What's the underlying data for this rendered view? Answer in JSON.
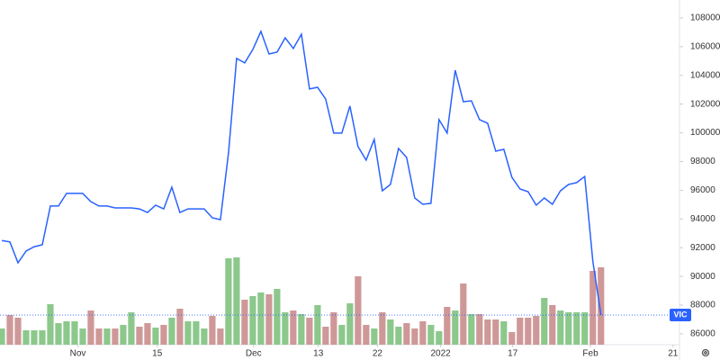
{
  "chart_data": {
    "type": "line",
    "x": [
      0,
      1,
      2,
      3,
      4,
      5,
      6,
      7,
      8,
      9,
      10,
      11,
      12,
      13,
      14,
      15,
      16,
      17,
      18,
      19,
      20,
      21,
      22,
      23,
      24,
      25,
      26,
      27,
      28,
      29,
      30,
      31,
      32,
      33,
      34,
      35,
      36,
      37,
      38,
      39,
      40,
      41,
      42,
      43,
      44,
      45,
      46,
      47,
      48,
      49,
      50,
      51,
      52,
      53,
      54,
      55,
      56,
      57,
      58,
      59,
      60,
      61,
      62,
      63,
      64,
      65,
      66,
      67,
      68,
      69,
      70,
      71,
      72,
      73,
      74
    ],
    "series": [
      {
        "name": "VIC",
        "color": "#2962ff",
        "values": [
          92500,
          92400,
          90950,
          91760,
          92070,
          92200,
          94900,
          94900,
          95780,
          95780,
          95780,
          95210,
          94900,
          94900,
          94770,
          94770,
          94770,
          94700,
          94450,
          94960,
          94700,
          96210,
          94450,
          94700,
          94700,
          94700,
          94080,
          93950,
          98600,
          105180,
          104870,
          105800,
          107060,
          105490,
          105620,
          106620,
          105870,
          106870,
          103050,
          103170,
          102360,
          99980,
          99980,
          101860,
          99040,
          98100,
          99540,
          95960,
          96400,
          98910,
          98280,
          95460,
          95020,
          95090,
          100920,
          99980,
          104360,
          102170,
          102230,
          100920,
          100670,
          98720,
          98850,
          96900,
          96090,
          95900,
          94960,
          95460,
          95020,
          95960,
          96400,
          96530,
          96960,
          91070,
          87310
        ]
      }
    ],
    "volume": {
      "up_color": "#8cc88c",
      "down_color": "#cf9898",
      "values": [
        18,
        33,
        30,
        16,
        16,
        16,
        45,
        24,
        26,
        26,
        18,
        38,
        18,
        18,
        18,
        22,
        36,
        20,
        24,
        19,
        22,
        30,
        40,
        26,
        26,
        18,
        32,
        18,
        96,
        97,
        50,
        54,
        58,
        56,
        62,
        36,
        38,
        34,
        30,
        44,
        20,
        36,
        22,
        46,
        76,
        22,
        18,
        36,
        28,
        20,
        24,
        18,
        26,
        22,
        15,
        42,
        38,
        68,
        34,
        34,
        28,
        28,
        26,
        14,
        30,
        30,
        32,
        52,
        44,
        38,
        36,
        36,
        36,
        82,
        86
      ]
    },
    "xlim": [
      -0.22,
      83.7
    ],
    "xticks": [
      {
        "value": 9.4,
        "label": "Nov"
      },
      {
        "value": 19.2,
        "label": "15"
      },
      {
        "value": 31.1,
        "label": "Dec"
      },
      {
        "value": 39.1,
        "label": "13"
      },
      {
        "value": 46.4,
        "label": "22"
      },
      {
        "value": 54.2,
        "label": "2022"
      },
      {
        "value": 63.1,
        "label": "17"
      },
      {
        "value": 72.7,
        "label": "Feb"
      },
      {
        "value": 82.9,
        "label": "21"
      }
    ],
    "ylim": [
      84680,
      109250
    ],
    "yticks": [
      86000,
      88000,
      90000,
      92000,
      94000,
      96000,
      98000,
      100000,
      102000,
      104000,
      106000,
      108000
    ]
  }
}
